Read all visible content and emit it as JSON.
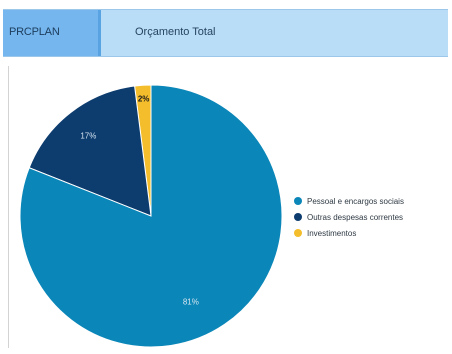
{
  "header": {
    "tab_label": "PRCPLAN",
    "title": "Orçamento Total"
  },
  "chart_data": {
    "type": "pie",
    "title": "",
    "labels": [
      "Pessoal e encargos sociais",
      "Outras despesas correntes",
      "Investimentos"
    ],
    "values": [
      81,
      17,
      2
    ],
    "data_labels": [
      "81%",
      "17%",
      "2%"
    ],
    "colors": [
      "#0a86b8",
      "#0d3c6e",
      "#f3bd2b"
    ],
    "legend_position": "right"
  }
}
